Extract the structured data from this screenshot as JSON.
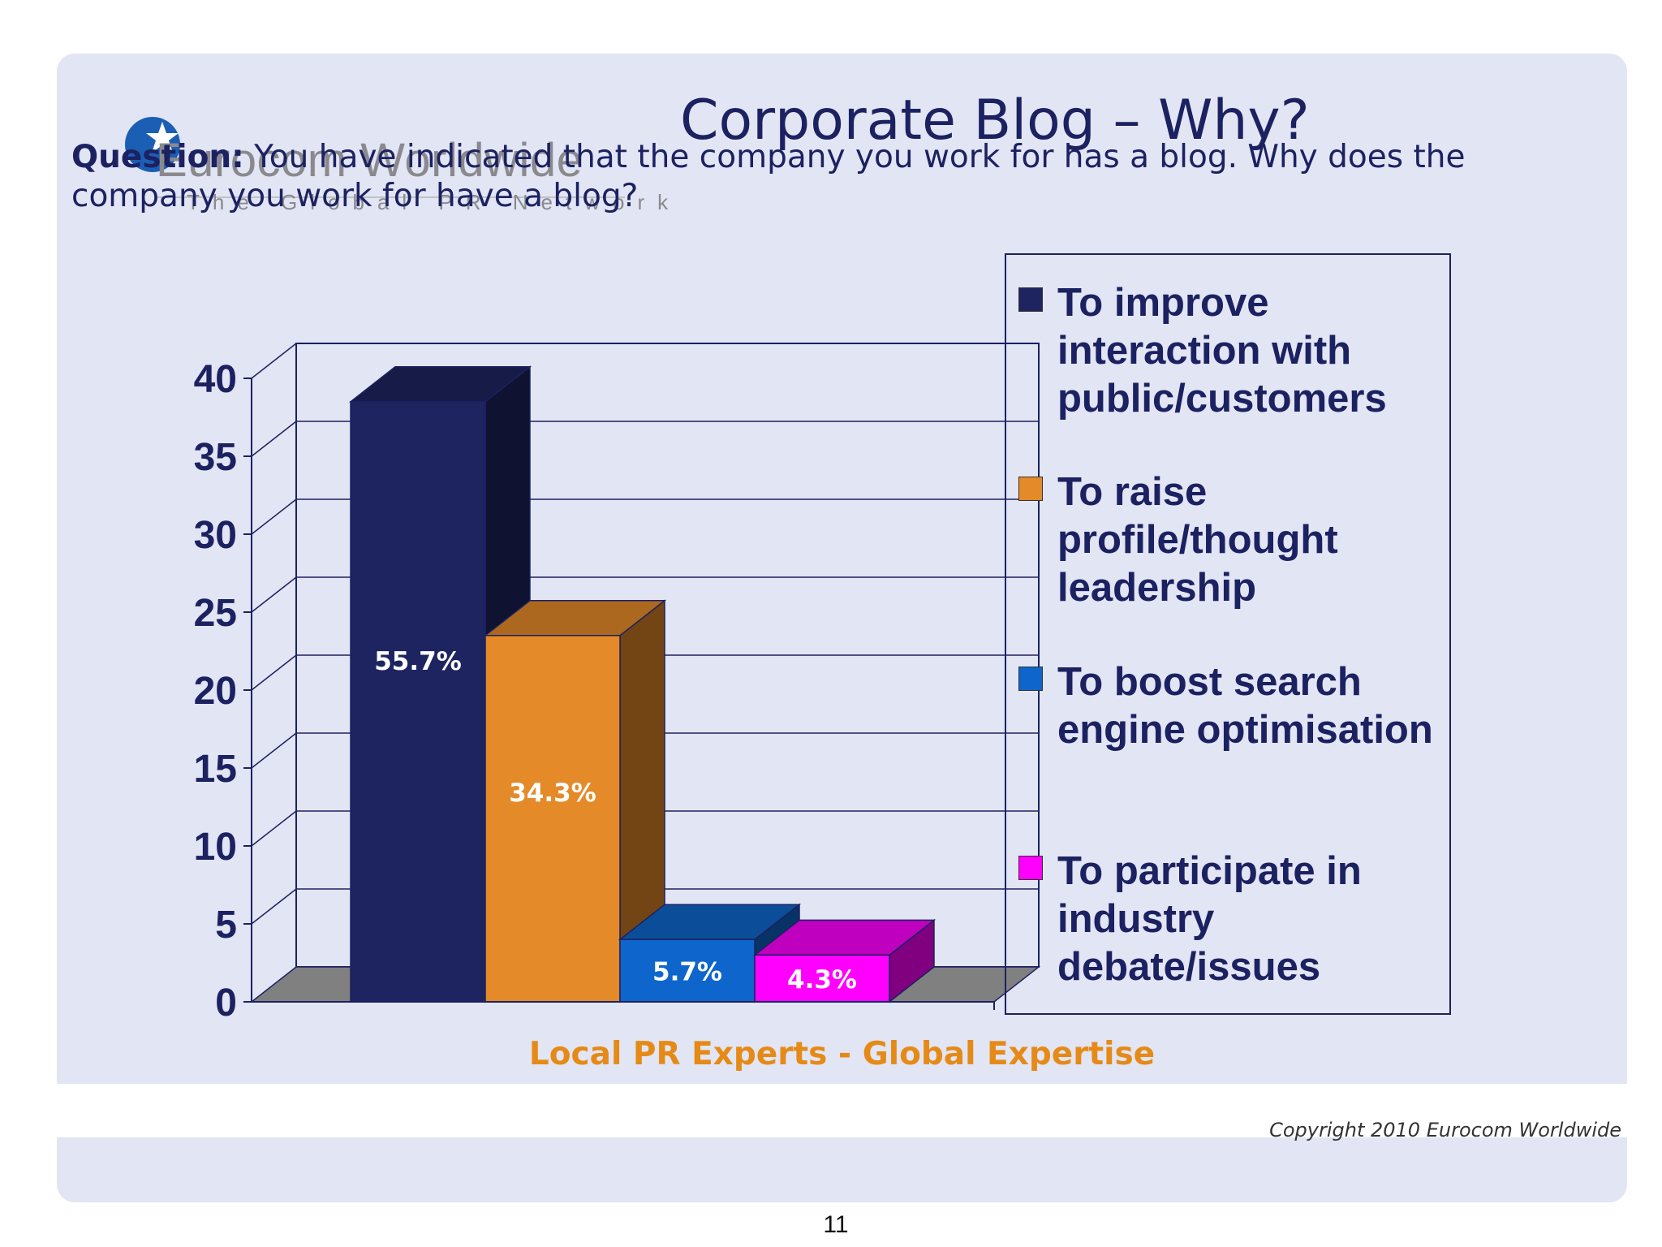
{
  "logo": {
    "name": "Eurocom Worldwide",
    "tagline": "The Global PR Network"
  },
  "title": "Corporate Blog – Why?",
  "question": {
    "label": "Question:",
    "text": " You have indicated that the company you work for has a blog. Why does the company you work for have a blog?"
  },
  "chart_data": {
    "type": "bar",
    "style": "3d",
    "ylim": [
      0,
      40
    ],
    "yticks": [
      "0",
      "5",
      "10",
      "15",
      "20",
      "25",
      "30",
      "35",
      "40"
    ],
    "grid": true,
    "legend_position": "right",
    "series": [
      {
        "name": "To improve interaction with public/customers",
        "value": 38.5,
        "label": "55.7%",
        "color": "#1e2460"
      },
      {
        "name": "To raise profile/thought leadership",
        "value": 23.5,
        "label": "34.3%",
        "color": "#e58a28"
      },
      {
        "name": "To boost search engine optimisation",
        "value": 4,
        "label": "5.7%",
        "color": "#0e66cc"
      },
      {
        "name": "To participate in industry debate/issues",
        "value": 3,
        "label": "4.3%",
        "color": "#ff00ff"
      }
    ]
  },
  "footer": {
    "slogan": "Local PR Experts - Global Expertise",
    "copyright": "Copyright 2010 Eurocom Worldwide"
  },
  "page_number": "11"
}
